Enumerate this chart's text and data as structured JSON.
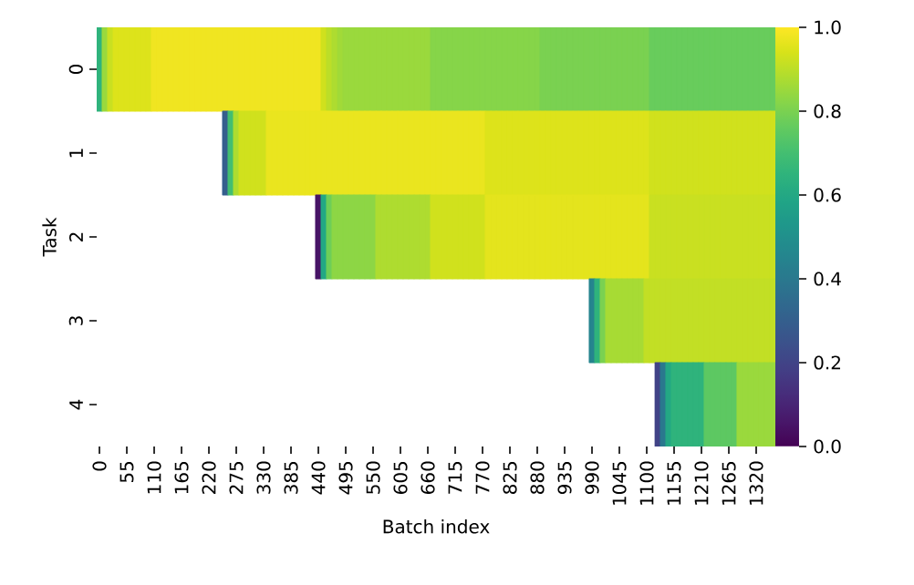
{
  "chart_data": {
    "type": "heatmap",
    "xlabel": "Batch index",
    "ylabel": "Task",
    "categories": [
      "0",
      null,
      null,
      null,
      null,
      "55",
      null,
      null,
      null,
      null,
      "110",
      null,
      null,
      null,
      null,
      "165",
      null,
      null,
      null,
      null,
      "220",
      null,
      null,
      null,
      null,
      "275",
      null,
      null,
      null,
      null,
      "330",
      null,
      null,
      null,
      null,
      "385",
      null,
      null,
      null,
      null,
      "440",
      null,
      null,
      null,
      null,
      "495",
      null,
      null,
      null,
      null,
      "550",
      null,
      null,
      null,
      null,
      "605",
      null,
      null,
      null,
      null,
      "660",
      null,
      null,
      null,
      null,
      "715",
      null,
      null,
      null,
      null,
      "770",
      null,
      null,
      null,
      null,
      "825",
      null,
      null,
      null,
      null,
      "880",
      null,
      null,
      null,
      null,
      "935",
      null,
      null,
      null,
      null,
      "990",
      null,
      null,
      null,
      null,
      "1045",
      null,
      null,
      null,
      null,
      "1100",
      null,
      null,
      null,
      null,
      "1155",
      null,
      null,
      null,
      null,
      "1210",
      null,
      null,
      null,
      null,
      "1265",
      null,
      null,
      null,
      null,
      "1320",
      null,
      null,
      null
    ],
    "y_categories": [
      "0",
      "1",
      "2",
      "3",
      "4"
    ],
    "cells": [
      [
        0.65,
        0.85,
        0.92,
        0.95,
        0.95,
        0.95,
        0.95,
        0.95,
        0.95,
        0.95,
        0.98,
        0.98,
        0.98,
        0.98,
        0.98,
        0.98,
        0.98,
        0.98,
        0.98,
        0.98,
        0.98,
        0.98,
        0.98,
        0.98,
        0.98,
        0.98,
        0.98,
        0.98,
        0.98,
        0.98,
        0.98,
        0.98,
        0.98,
        0.98,
        0.98,
        0.98,
        0.98,
        0.98,
        0.98,
        0.98,
        0.98,
        0.93,
        0.9,
        0.88,
        0.86,
        0.85,
        0.85,
        0.85,
        0.85,
        0.85,
        0.85,
        0.85,
        0.85,
        0.85,
        0.85,
        0.85,
        0.85,
        0.85,
        0.85,
        0.85,
        0.85,
        0.82,
        0.82,
        0.82,
        0.82,
        0.82,
        0.82,
        0.82,
        0.82,
        0.82,
        0.82,
        0.82,
        0.82,
        0.82,
        0.82,
        0.82,
        0.82,
        0.82,
        0.82,
        0.82,
        0.82,
        0.8,
        0.8,
        0.8,
        0.8,
        0.8,
        0.8,
        0.8,
        0.8,
        0.8,
        0.8,
        0.8,
        0.8,
        0.8,
        0.8,
        0.8,
        0.8,
        0.8,
        0.8,
        0.8,
        0.8,
        0.77,
        0.77,
        0.77,
        0.77,
        0.77,
        0.77,
        0.77,
        0.77,
        0.77,
        0.77,
        0.77,
        0.77,
        0.77,
        0.77,
        0.77,
        0.77,
        0.77,
        0.77,
        0.77,
        0.77,
        0.77,
        0.77,
        0.77
      ],
      [
        null,
        null,
        null,
        null,
        null,
        null,
        null,
        null,
        null,
        null,
        null,
        null,
        null,
        null,
        null,
        null,
        null,
        null,
        null,
        null,
        null,
        null,
        null,
        0.3,
        0.7,
        0.88,
        0.93,
        0.93,
        0.93,
        0.93,
        0.93,
        0.97,
        0.97,
        0.97,
        0.97,
        0.97,
        0.97,
        0.97,
        0.97,
        0.97,
        0.97,
        0.97,
        0.97,
        0.97,
        0.97,
        0.97,
        0.97,
        0.97,
        0.97,
        0.97,
        0.97,
        0.97,
        0.97,
        0.97,
        0.97,
        0.97,
        0.97,
        0.97,
        0.97,
        0.97,
        0.97,
        0.97,
        0.97,
        0.97,
        0.97,
        0.97,
        0.97,
        0.97,
        0.97,
        0.97,
        0.97,
        0.95,
        0.95,
        0.95,
        0.95,
        0.95,
        0.95,
        0.95,
        0.95,
        0.95,
        0.95,
        0.95,
        0.95,
        0.95,
        0.95,
        0.95,
        0.95,
        0.95,
        0.95,
        0.95,
        0.95,
        0.95,
        0.95,
        0.95,
        0.95,
        0.95,
        0.95,
        0.95,
        0.95,
        0.95,
        0.95,
        0.93,
        0.93,
        0.93,
        0.93,
        0.93,
        0.93,
        0.93,
        0.93,
        0.93,
        0.93,
        0.93,
        0.93,
        0.93,
        0.93,
        0.93,
        0.93,
        0.93,
        0.93,
        0.93,
        0.93,
        0.93,
        0.93,
        0.93
      ],
      [
        null,
        null,
        null,
        null,
        null,
        null,
        null,
        null,
        null,
        null,
        null,
        null,
        null,
        null,
        null,
        null,
        null,
        null,
        null,
        null,
        null,
        null,
        null,
        null,
        null,
        null,
        null,
        null,
        null,
        null,
        null,
        null,
        null,
        null,
        null,
        null,
        null,
        null,
        null,
        null,
        0.05,
        0.6,
        0.78,
        0.83,
        0.83,
        0.83,
        0.83,
        0.83,
        0.83,
        0.83,
        0.83,
        0.88,
        0.88,
        0.88,
        0.88,
        0.88,
        0.88,
        0.88,
        0.88,
        0.88,
        0.88,
        0.93,
        0.93,
        0.93,
        0.93,
        0.93,
        0.93,
        0.93,
        0.93,
        0.93,
        0.93,
        0.96,
        0.96,
        0.96,
        0.96,
        0.96,
        0.96,
        0.96,
        0.96,
        0.96,
        0.96,
        0.96,
        0.96,
        0.96,
        0.96,
        0.96,
        0.96,
        0.96,
        0.96,
        0.96,
        0.96,
        0.96,
        0.96,
        0.96,
        0.96,
        0.96,
        0.96,
        0.96,
        0.96,
        0.96,
        0.96,
        0.92,
        0.92,
        0.92,
        0.92,
        0.92,
        0.92,
        0.92,
        0.92,
        0.92,
        0.92,
        0.92,
        0.92,
        0.92,
        0.92,
        0.92,
        0.92,
        0.92,
        0.92,
        0.92,
        0.92,
        0.92,
        0.92,
        0.92
      ],
      [
        null,
        null,
        null,
        null,
        null,
        null,
        null,
        null,
        null,
        null,
        null,
        null,
        null,
        null,
        null,
        null,
        null,
        null,
        null,
        null,
        null,
        null,
        null,
        null,
        null,
        null,
        null,
        null,
        null,
        null,
        null,
        null,
        null,
        null,
        null,
        null,
        null,
        null,
        null,
        null,
        null,
        null,
        null,
        null,
        null,
        null,
        null,
        null,
        null,
        null,
        null,
        null,
        null,
        null,
        null,
        null,
        null,
        null,
        null,
        null,
        null,
        null,
        null,
        null,
        null,
        null,
        null,
        null,
        null,
        null,
        null,
        null,
        null,
        null,
        null,
        null,
        null,
        null,
        null,
        null,
        null,
        null,
        null,
        null,
        null,
        null,
        null,
        null,
        null,
        null,
        0.45,
        0.65,
        0.8,
        0.87,
        0.87,
        0.87,
        0.87,
        0.87,
        0.87,
        0.87,
        0.91,
        0.91,
        0.91,
        0.91,
        0.91,
        0.91,
        0.91,
        0.91,
        0.91,
        0.91,
        0.91,
        0.91,
        0.91,
        0.91,
        0.91,
        0.91,
        0.91,
        0.91,
        0.91,
        0.91,
        0.91,
        0.91,
        0.91,
        0.91
      ],
      [
        null,
        null,
        null,
        null,
        null,
        null,
        null,
        null,
        null,
        null,
        null,
        null,
        null,
        null,
        null,
        null,
        null,
        null,
        null,
        null,
        null,
        null,
        null,
        null,
        null,
        null,
        null,
        null,
        null,
        null,
        null,
        null,
        null,
        null,
        null,
        null,
        null,
        null,
        null,
        null,
        null,
        null,
        null,
        null,
        null,
        null,
        null,
        null,
        null,
        null,
        null,
        null,
        null,
        null,
        null,
        null,
        null,
        null,
        null,
        null,
        null,
        null,
        null,
        null,
        null,
        null,
        null,
        null,
        null,
        null,
        null,
        null,
        null,
        null,
        null,
        null,
        null,
        null,
        null,
        null,
        null,
        null,
        null,
        null,
        null,
        null,
        null,
        null,
        null,
        null,
        null,
        null,
        null,
        null,
        null,
        null,
        null,
        null,
        null,
        null,
        null,
        null,
        0.2,
        0.4,
        0.6,
        0.65,
        0.65,
        0.65,
        0.65,
        0.65,
        0.65,
        0.75,
        0.75,
        0.75,
        0.75,
        0.75,
        0.75,
        0.85,
        0.85,
        0.85,
        0.85,
        0.85,
        0.85,
        0.85
      ]
    ],
    "clim": [
      0,
      1
    ],
    "cticks": [
      {
        "value": 0,
        "label": "0.0"
      },
      {
        "value": 0.2,
        "label": "0.2"
      },
      {
        "value": 0.4,
        "label": "0.4"
      },
      {
        "value": 0.6,
        "label": "0.6"
      },
      {
        "value": 0.8,
        "label": "0.8"
      },
      {
        "value": 1,
        "label": "1.0"
      }
    ]
  }
}
